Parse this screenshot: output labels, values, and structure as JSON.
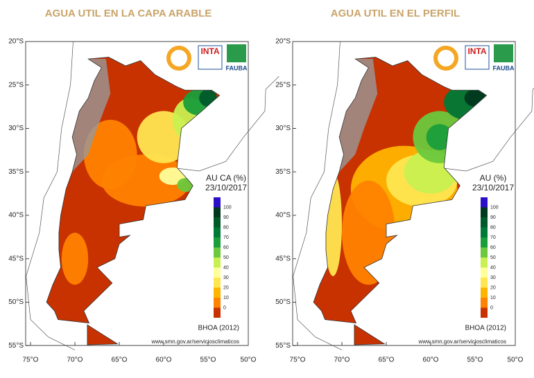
{
  "maps": [
    {
      "title": "AGUA UTIL EN LA CAPA ARABLE",
      "legend_title": "AU CA (%)",
      "date": "23/10/2017",
      "source": "BHOA (2012)",
      "url": "www.smn.gov.ar/serviciosclimaticos"
    },
    {
      "title": "AGUA UTIL EN EL PERFIL",
      "legend_title": "AU (%)",
      "date": "23/10/2017",
      "source": "BHOA (2012)",
      "url": "www.smn.gov.ar/serviciosclimaticos"
    }
  ],
  "lat_labels": [
    "20°S",
    "25°S",
    "30°S",
    "35°S",
    "40°S",
    "45°S",
    "50°S",
    "55°S"
  ],
  "lon_labels": [
    "75°O",
    "70°O",
    "65°O",
    "60°O",
    "55°O",
    "50°O"
  ],
  "legend_levels": [
    100,
    90,
    80,
    70,
    60,
    50,
    40,
    30,
    20,
    10,
    0
  ],
  "legend_colors": [
    "#2a10c8",
    "#003820",
    "#005a2a",
    "#007a36",
    "#1a9e3a",
    "#6cc83c",
    "#c8f050",
    "#ffff9a",
    "#ffe650",
    "#ffb400",
    "#ff8200",
    "#c83200"
  ],
  "logos": [
    "INTA",
    "FAUBA"
  ]
}
